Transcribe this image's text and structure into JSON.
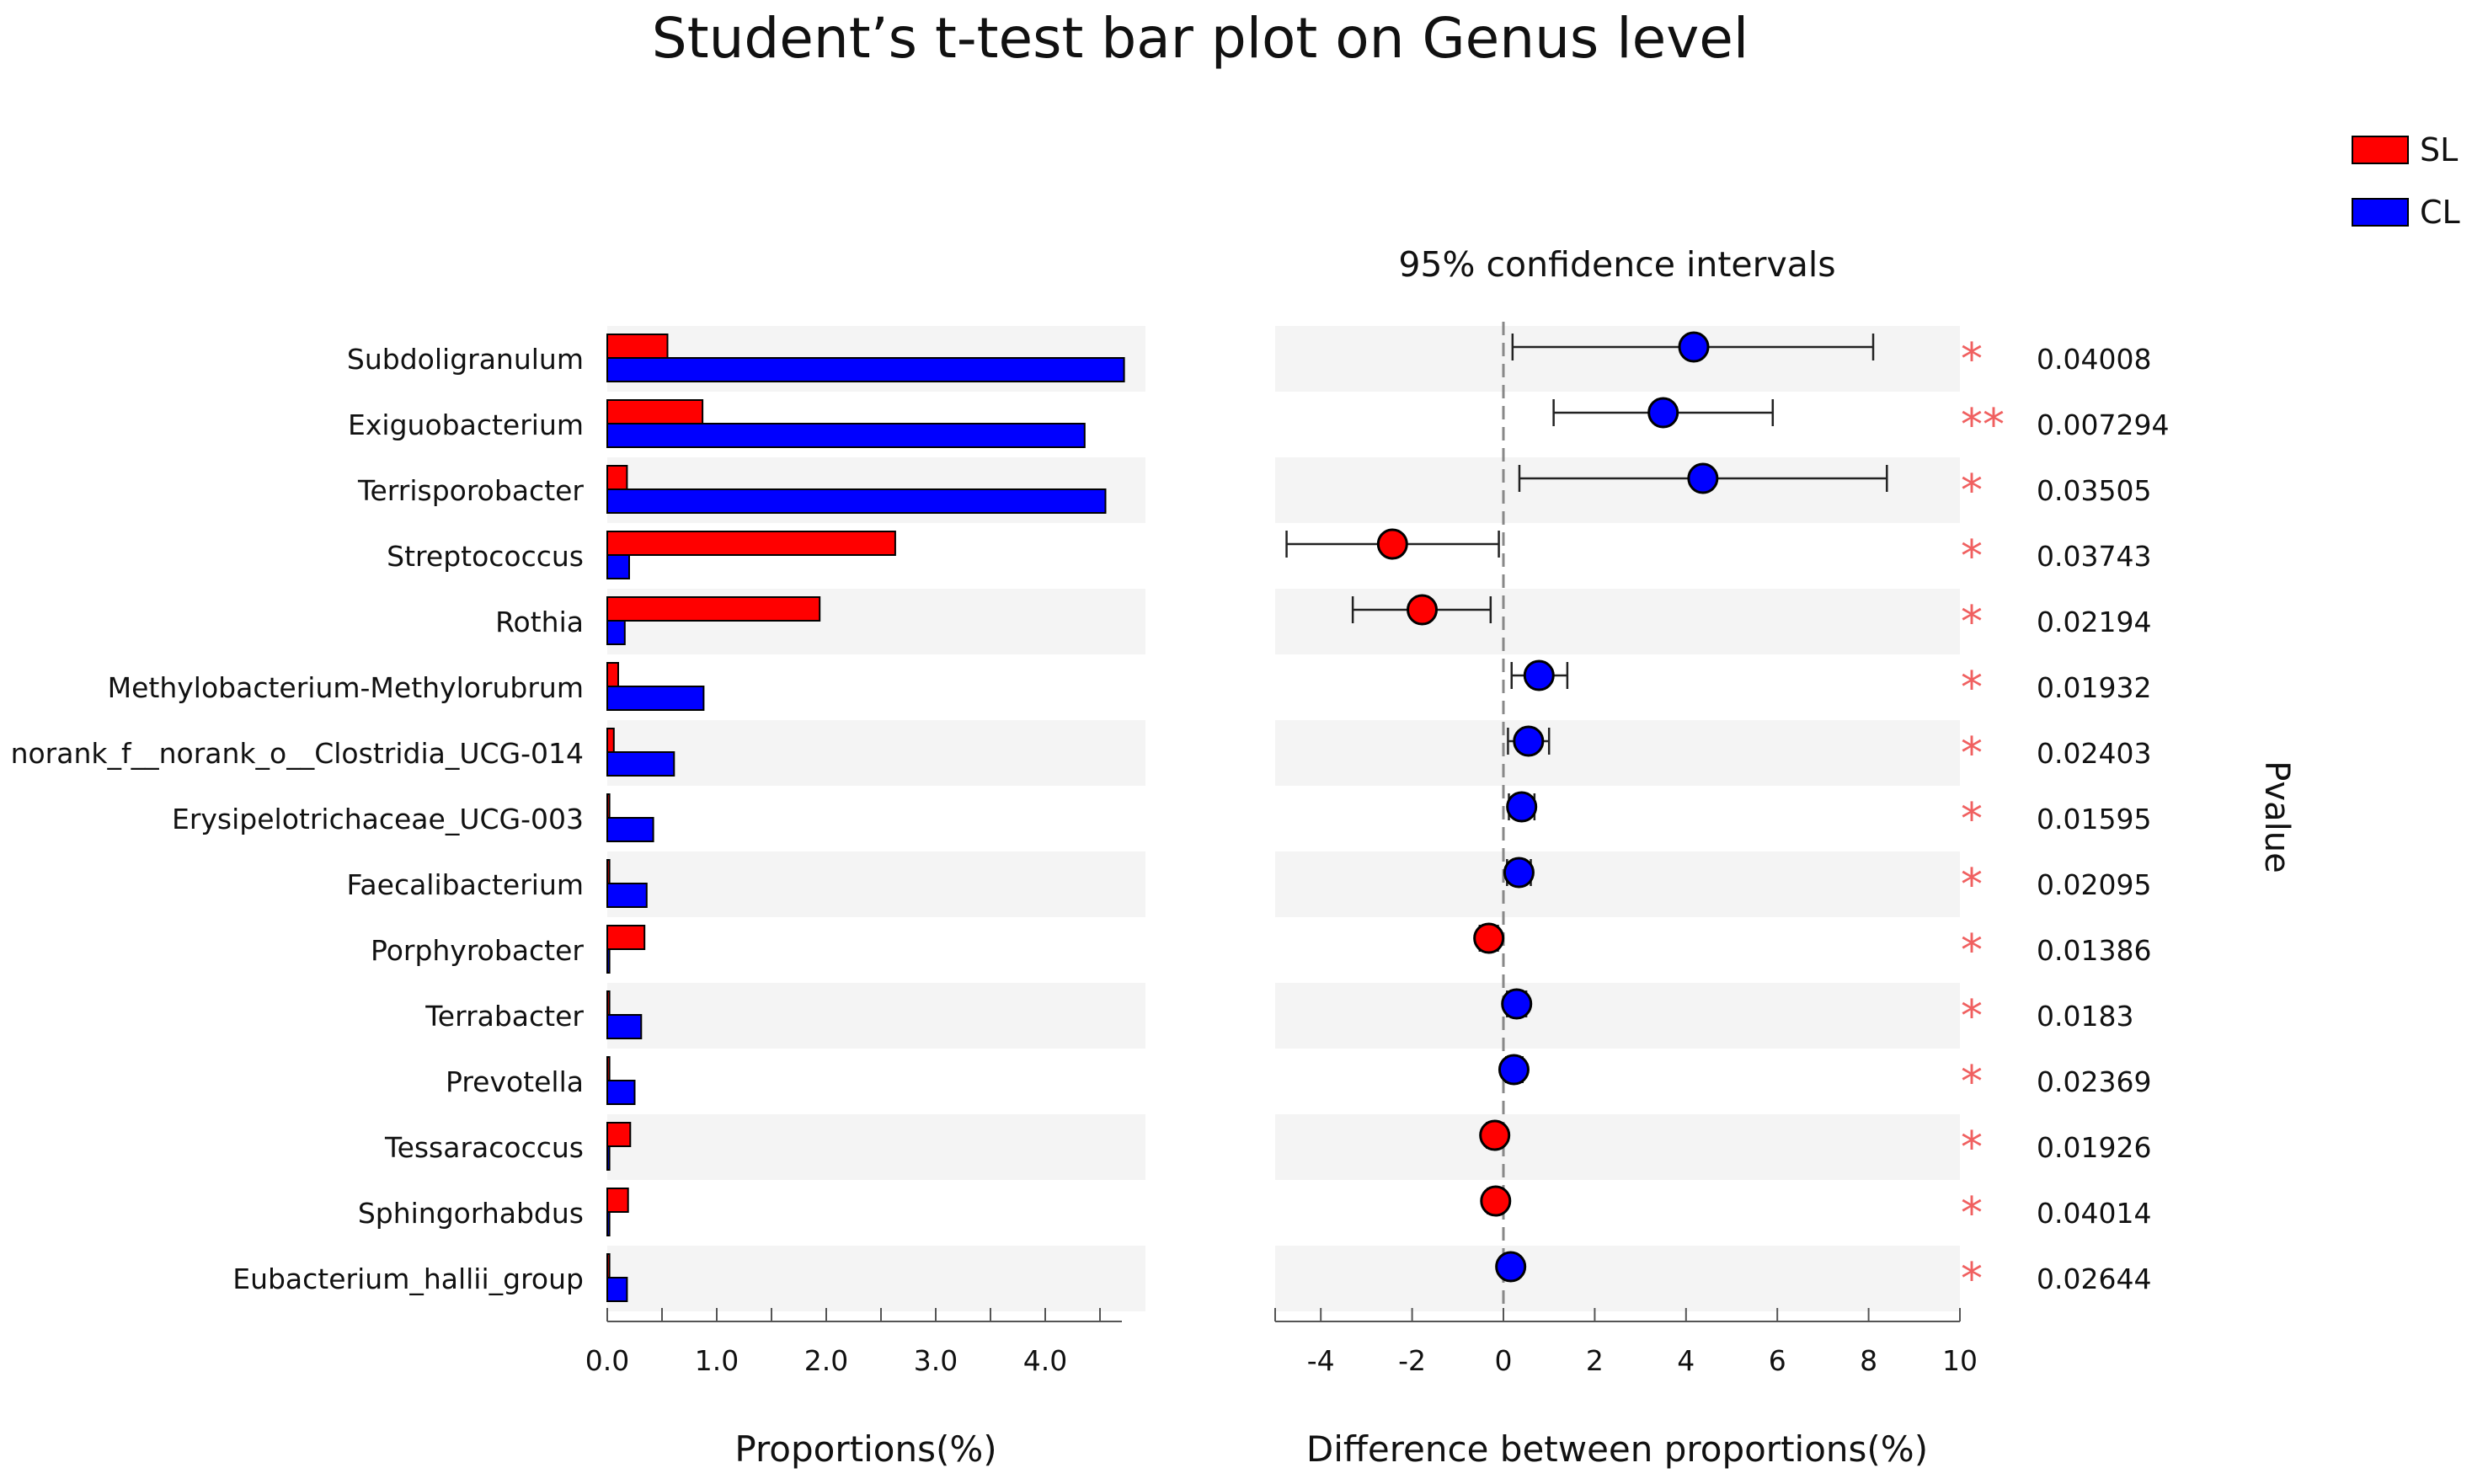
{
  "chart_data": {
    "type": "bar",
    "title": "Student’s t-test bar plot on Genus level",
    "legend": {
      "placement": "top-right",
      "entries": [
        {
          "name": "SL",
          "color": "#ff0000"
        },
        {
          "name": "CL",
          "color": "#0000ff"
        }
      ]
    },
    "categories": [
      "Subdoligranulum",
      "Exiguobacterium",
      "Terrisporobacter",
      "Streptococcus",
      "Rothia",
      "Methylobacterium-Methylorubrum",
      "norank_f__norank_o__Clostridia_UCG-014",
      "Erysipelotrichaceae_UCG-003",
      "Faecalibacterium",
      "Porphyrobacter",
      "Terrabacter",
      "Prevotella",
      "Tessaracoccus",
      "Sphingorhabdus",
      "Eubacterium_hallii_group"
    ],
    "proportions": {
      "xlabel": "Proportions(%)",
      "xlim": [
        0,
        4.7
      ],
      "ticks": [
        0,
        0.5,
        1,
        1.5,
        2,
        2.5,
        3,
        3.5,
        4,
        4.5
      ],
      "tick_labels": [
        "0.0",
        "",
        "1.0",
        "",
        "2.0",
        "",
        "3.0",
        "",
        "4.0",
        ""
      ],
      "series": [
        {
          "name": "SL",
          "color": "#ff0000",
          "values": [
            0.55,
            0.87,
            0.18,
            2.63,
            1.94,
            0.1,
            0.06,
            0.02,
            0.02,
            0.34,
            0.02,
            0.02,
            0.21,
            0.19,
            0.02
          ]
        },
        {
          "name": "CL",
          "color": "#0000ff",
          "values": [
            4.72,
            4.36,
            4.55,
            0.2,
            0.16,
            0.88,
            0.61,
            0.42,
            0.36,
            0.02,
            0.31,
            0.25,
            0.02,
            0.02,
            0.18
          ]
        }
      ]
    },
    "difference": {
      "title": "95% confidence intervals",
      "xlabel": "Difference between proportions(%)",
      "xlim": [
        -5,
        10
      ],
      "ticks": [
        -4,
        -2,
        0,
        2,
        4,
        6,
        8,
        10
      ],
      "tick_labels": [
        "-4",
        "-2",
        "0",
        "2",
        "4",
        "6",
        "8",
        "10"
      ],
      "points": [
        {
          "value": 4.17,
          "ci": [
            0.2,
            8.1
          ],
          "group": "CL"
        },
        {
          "value": 3.5,
          "ci": [
            1.1,
            5.9
          ],
          "group": "CL"
        },
        {
          "value": 4.37,
          "ci": [
            0.35,
            8.4
          ],
          "group": "CL"
        },
        {
          "value": -2.43,
          "ci": [
            -4.75,
            -0.1
          ],
          "group": "SL"
        },
        {
          "value": -1.78,
          "ci": [
            -3.3,
            -0.28
          ],
          "group": "SL"
        },
        {
          "value": 0.78,
          "ci": [
            0.18,
            1.4
          ],
          "group": "CL"
        },
        {
          "value": 0.55,
          "ci": [
            0.1,
            1.0
          ],
          "group": "CL"
        },
        {
          "value": 0.4,
          "ci": [
            0.12,
            0.68
          ],
          "group": "CL"
        },
        {
          "value": 0.34,
          "ci": [
            0.08,
            0.6
          ],
          "group": "CL"
        },
        {
          "value": -0.32,
          "ci": [
            -0.52,
            -0.12
          ],
          "group": "SL"
        },
        {
          "value": 0.29,
          "ci": [
            0.08,
            0.5
          ],
          "group": "CL"
        },
        {
          "value": 0.23,
          "ci": [
            0.06,
            0.42
          ],
          "group": "CL"
        },
        {
          "value": -0.19,
          "ci": [
            -0.36,
            -0.03
          ],
          "group": "SL"
        },
        {
          "value": -0.17,
          "ci": [
            -0.34,
            -0.01
          ],
          "group": "SL"
        },
        {
          "value": 0.16,
          "ci": [
            0.01,
            0.32
          ],
          "group": "CL"
        }
      ]
    },
    "significance": [
      "*",
      "**",
      "*",
      "*",
      "*",
      "*",
      "*",
      "*",
      "*",
      "*",
      "*",
      "*",
      "*",
      "*",
      "*"
    ],
    "pvalues": [
      "0.04008",
      "0.007294",
      "0.03505",
      "0.03743",
      "0.02194",
      "0.01932",
      "0.02403",
      "0.01595",
      "0.02095",
      "0.01386",
      "0.0183",
      "0.02369",
      "0.01926",
      "0.04014",
      "0.02644"
    ],
    "pvalue_label": "Pvalue",
    "grid": false
  }
}
